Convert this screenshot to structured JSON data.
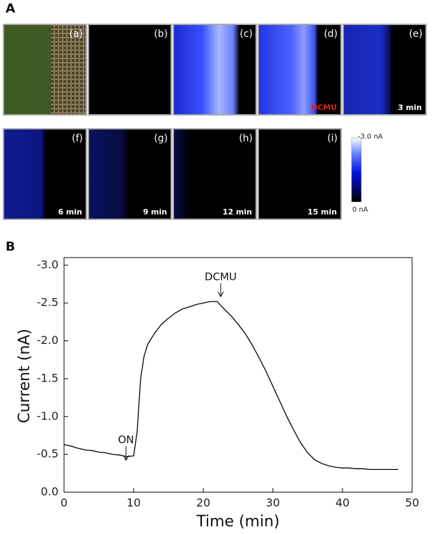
{
  "panel_a": {
    "label": "A",
    "images": [
      {
        "label": "(a)"
      },
      {
        "label": "(b)"
      },
      {
        "label": "(c)"
      },
      {
        "label": "(d)",
        "note": "DCMU"
      },
      {
        "label": "(e)",
        "time": "3 min"
      },
      {
        "label": "(f)",
        "time": "6 min"
      },
      {
        "label": "(g)",
        "time": "9 min"
      },
      {
        "label": "(h)",
        "time": "12 min"
      },
      {
        "label": "(i)",
        "time": "15 min"
      }
    ],
    "colorbar": {
      "top": "-3.0 nA",
      "bottom": "0 nA"
    }
  },
  "chart_data": {
    "type": "line",
    "panel_label": "B",
    "x_label": "Time (min)",
    "y_label": "Current (nA)",
    "annotations": [
      "ON",
      "DCMU"
    ],
    "x": [
      0,
      1,
      2,
      3,
      4,
      5,
      6,
      7,
      8,
      9,
      10,
      10.5,
      11,
      11.5,
      12,
      13,
      14,
      15,
      16,
      17,
      18,
      19,
      20,
      21,
      22,
      23,
      24,
      25,
      26,
      27,
      28,
      29,
      30,
      31,
      32,
      33,
      34,
      35,
      36,
      37,
      38,
      39,
      40,
      41,
      42,
      43,
      44,
      45,
      46,
      47,
      48
    ],
    "series": [
      {
        "color": "#000000",
        "values": [
          -0.63,
          -0.61,
          -0.58,
          -0.56,
          -0.55,
          -0.53,
          -0.52,
          -0.5,
          -0.49,
          -0.47,
          -0.48,
          -0.8,
          -1.5,
          -1.8,
          -1.95,
          -2.1,
          -2.22,
          -2.3,
          -2.37,
          -2.42,
          -2.45,
          -2.48,
          -2.5,
          -2.52,
          -2.52,
          -2.42,
          -2.33,
          -2.22,
          -2.1,
          -1.95,
          -1.78,
          -1.6,
          -1.4,
          -1.2,
          -1.0,
          -0.82,
          -0.65,
          -0.52,
          -0.43,
          -0.38,
          -0.35,
          -0.33,
          -0.32,
          -0.32,
          -0.31,
          -0.31,
          -0.3,
          -0.3,
          -0.3,
          -0.3,
          -0.3
        ]
      }
    ],
    "xlim": [
      0,
      50
    ],
    "xticks": [
      0,
      10,
      20,
      30,
      40,
      50
    ],
    "ylim": [
      0,
      -3.1
    ],
    "yticks": [
      {
        "value": 0,
        "label": "0.0"
      },
      -0.5,
      {
        "value": -1,
        "label": "-1.0"
      },
      -1.5,
      {
        "value": -2,
        "label": "-2.0"
      },
      -2.5,
      {
        "value": -3,
        "label": "-3.0"
      }
    ]
  }
}
